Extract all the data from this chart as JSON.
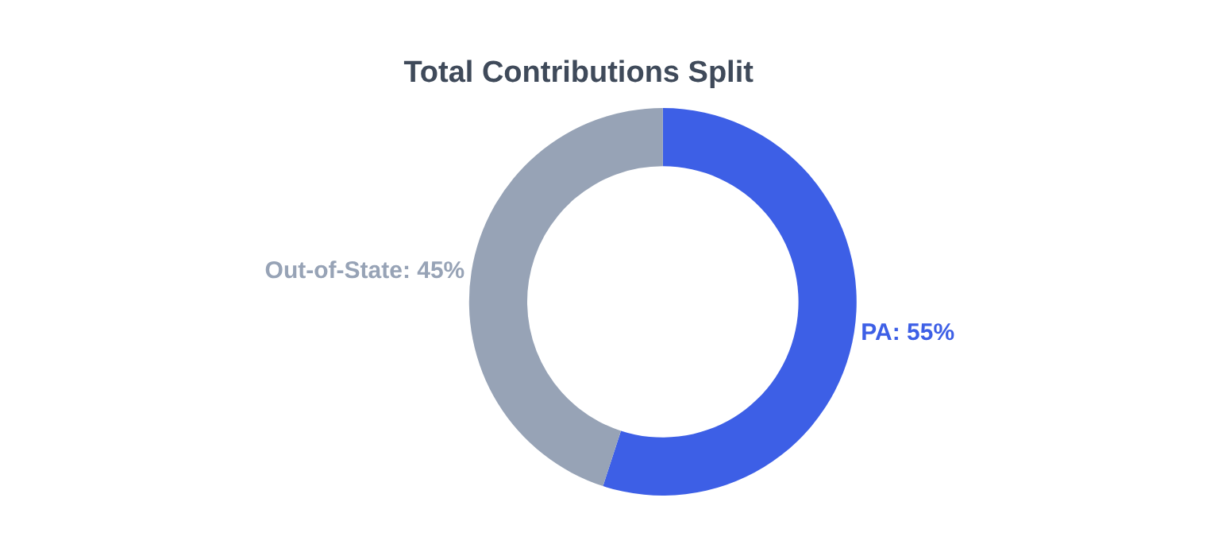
{
  "chart_data": {
    "type": "donut",
    "title": "Total Contributions Split",
    "categories": [
      "PA",
      "Out-of-State"
    ],
    "values": [
      55,
      45
    ],
    "colors": [
      "#3d5fe6",
      "#97a3b6"
    ],
    "value_labels": [
      "55%",
      "45%"
    ],
    "legend": false
  }
}
